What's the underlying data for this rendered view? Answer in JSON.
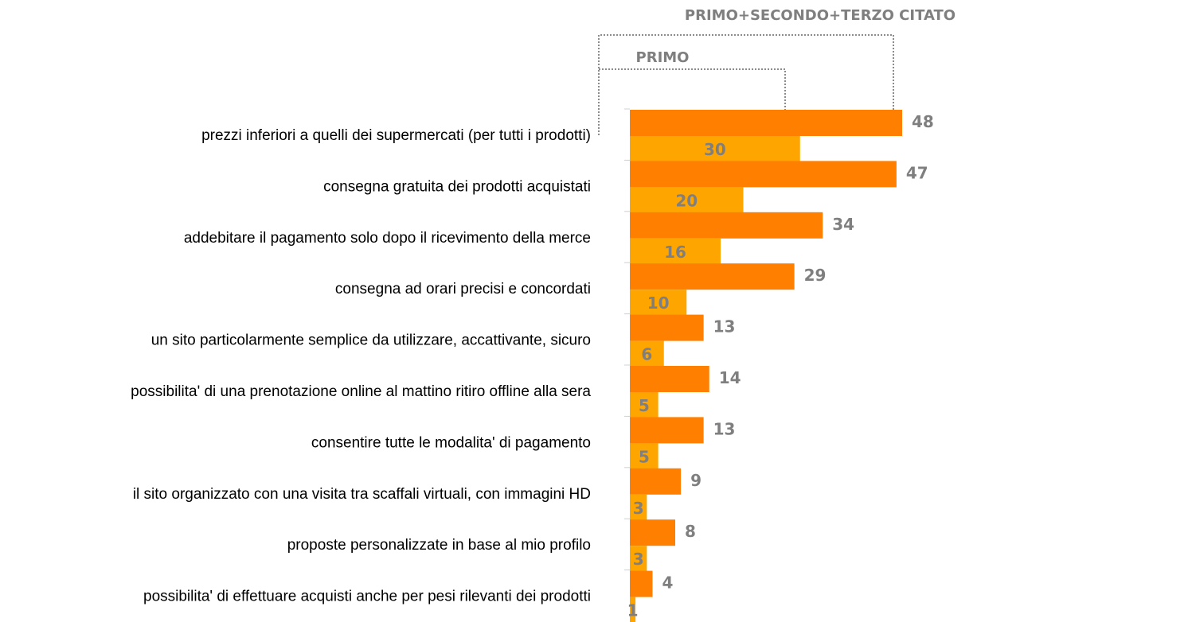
{
  "chart_data": {
    "type": "bar",
    "orientation": "horizontal",
    "categories": [
      "prezzi inferiori a quelli dei supermercati (per tutti i prodotti)",
      "consegna gratuita dei prodotti acquistati",
      "addebitare il pagamento solo dopo il ricevimento della merce",
      "consegna ad orari precisi e concordati",
      "un sito particolarmente semplice da utilizzare, accattivante, sicuro",
      "possibilita' di una prenotazione online al mattino ritiro offline alla sera",
      "consentire tutte le modalita' di pagamento ",
      "il sito organizzato con una visita tra scaffali virtuali, con immagini HD",
      "proposte personalizzate in base al mio profilo",
      "possibilita' di effettuare acquisti anche per pesi rilevanti dei prodotti "
    ],
    "series": [
      {
        "name": "PRIMO+SECONDO+TERZO CITATO",
        "color": "#ff7f00",
        "values": [
          48,
          47,
          34,
          29,
          13,
          14,
          13,
          9,
          8,
          4
        ]
      },
      {
        "name": "PRIMO",
        "color": "#ffa500",
        "values": [
          30,
          20,
          16,
          10,
          6,
          5,
          5,
          3,
          3,
          1
        ]
      }
    ],
    "xlim": [
      0,
      60
    ]
  }
}
